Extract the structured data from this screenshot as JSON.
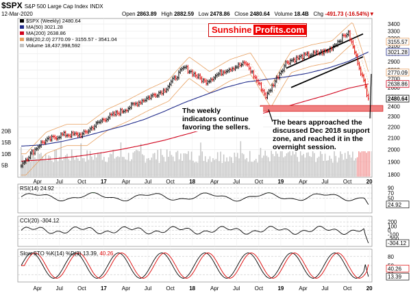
{
  "header": {
    "symbol": "$SPX",
    "name": "S&P 500 Large Cap Index",
    "exchange": "INDX",
    "date": "12-Mar-2020",
    "open_label": "Open",
    "open": "2863.89",
    "high_label": "High",
    "high": "2882.59",
    "low_label": "Low",
    "low": "2478.86",
    "close_label": "Close",
    "close": "2480.64",
    "volume_label": "Volume",
    "volume": "18.4B",
    "chg_label": "Chg",
    "chg": "-491.73 (-16.54%)"
  },
  "legend": [
    {
      "text": "$SPX (Weekly) 2480.64",
      "color": "#000000",
      "marker": "bar"
    },
    {
      "text": "MA(50) 3021.28",
      "color": "#1f2a8a",
      "marker": "line"
    },
    {
      "text": "MA(200) 2638.86",
      "color": "#d0021b",
      "marker": "line"
    },
    {
      "text": "BB(20,2.0) 2770.09 - 3155.57 - 3541.04",
      "color": "#e8a060",
      "marker": "line"
    },
    {
      "text": "Volume 18,437,998,592",
      "color": "#c0c0c0",
      "marker": "bar"
    }
  ],
  "brand": {
    "part1": "Sunshine",
    "part2": "Profits.com"
  },
  "annotations": {
    "weekly": [
      "The weekly",
      "indicators continue",
      "favoring the sellers."
    ],
    "bears": [
      "The bears approached the",
      "discussed Dec 2018 support",
      "zone, and reached it in the",
      "overnight session."
    ]
  },
  "colors": {
    "up": "#000000",
    "down": "#e00000",
    "ma50": "#1f2a8a",
    "ma200": "#d0021b",
    "bb": "#e8a060",
    "support": "#f08080",
    "volume": "#c8c8c8",
    "volume_recent": "#f4a0a0",
    "osc_fill": "#3c7a3c"
  },
  "chart_data": [
    {
      "type": "line",
      "title": "$SPX (Weekly)",
      "ylim": [
        1800,
        3450
      ],
      "log_scale": true,
      "grid": true,
      "price_axis": [
        {
          "label": "3400",
          "v": 3400
        },
        {
          "label": "3300",
          "v": 3300
        },
        {
          "label": "3200",
          "v": 3200
        },
        {
          "label": "3100",
          "v": 3100
        },
        {
          "label": "3000",
          "v": 3000
        },
        {
          "label": "2900",
          "v": 2900
        },
        {
          "label": "2800",
          "v": 2800
        },
        {
          "label": "2700",
          "v": 2700
        },
        {
          "label": "2600",
          "v": 2600
        },
        {
          "label": "2500",
          "v": 2500
        },
        {
          "label": "2400",
          "v": 2400
        },
        {
          "label": "2300",
          "v": 2300
        },
        {
          "label": "2200",
          "v": 2200
        },
        {
          "label": "2100",
          "v": 2100
        },
        {
          "label": "2000",
          "v": 2000
        },
        {
          "label": "1900",
          "v": 1900
        },
        {
          "label": "1800",
          "v": 1800
        }
      ],
      "value_tags": [
        {
          "label": "3155.57",
          "v": 3155.57
        },
        {
          "label": "3021.28",
          "v": 3021.28
        },
        {
          "label": "2770.09",
          "v": 2770.09
        },
        {
          "label": "2638.86",
          "v": 2638.86
        },
        {
          "label": "2480.64",
          "v": 2480.64
        }
      ],
      "volume_axis": [
        {
          "label": "20B",
          "v": 20
        },
        {
          "label": "15B",
          "v": 15
        },
        {
          "label": "10B",
          "v": 10
        },
        {
          "label": "5B",
          "v": 5
        }
      ],
      "time_axis": [
        {
          "label": "Apr",
          "t": 0.06
        },
        {
          "label": "Jul",
          "t": 0.127
        },
        {
          "label": "Oct",
          "t": 0.195
        },
        {
          "label": "17",
          "t": 0.262
        },
        {
          "label": "Apr",
          "t": 0.33
        },
        {
          "label": "Jul",
          "t": 0.397
        },
        {
          "label": "Oct",
          "t": 0.465
        },
        {
          "label": "18",
          "t": 0.532
        },
        {
          "label": "Apr",
          "t": 0.6
        },
        {
          "label": "Jul",
          "t": 0.667
        },
        {
          "label": "Oct",
          "t": 0.735
        },
        {
          "label": "19",
          "t": 0.802
        },
        {
          "label": "Apr",
          "t": 0.87
        },
        {
          "label": "Jul",
          "t": 0.937
        },
        {
          "label": "Oct",
          "t": 1.005
        },
        {
          "label": "20",
          "t": 1.072
        }
      ],
      "x": [
        "2016-01",
        "2016-04",
        "2016-07",
        "2016-10",
        "2017-01",
        "2017-04",
        "2017-07",
        "2017-10",
        "2018-01",
        "2018-04",
        "2018-07",
        "2018-10",
        "2019-01",
        "2019-04",
        "2019-07",
        "2019-10",
        "2020-01",
        "2020-03"
      ],
      "series": [
        {
          "name": "$SPX (Weekly)",
          "values": [
            1880,
            2060,
            2130,
            2130,
            2270,
            2360,
            2470,
            2570,
            2830,
            2660,
            2800,
            2880,
            2500,
            2900,
            2980,
            3030,
            3280,
            2480
          ]
        },
        {
          "name": "MA(50)",
          "values": [
            2030,
            2040,
            2070,
            2110,
            2160,
            2210,
            2270,
            2350,
            2440,
            2520,
            2600,
            2660,
            2690,
            2720,
            2760,
            2820,
            2900,
            3021
          ]
        },
        {
          "name": "MA(200)",
          "values": [
            1905,
            1915,
            1930,
            1950,
            1975,
            2005,
            2040,
            2080,
            2130,
            2180,
            2230,
            2290,
            2340,
            2400,
            2460,
            2520,
            2590,
            2639
          ]
        }
      ],
      "support_zone": [
        2350,
        2410
      ]
    },
    {
      "type": "line",
      "title": "RSI(14)",
      "value": "24.92",
      "ylim": [
        0,
        100
      ],
      "axis": [
        {
          "label": "90",
          "v": 90
        },
        {
          "label": "70",
          "v": 70
        },
        {
          "label": "50",
          "v": 50
        }
      ]
    },
    {
      "type": "line",
      "title": "CCI(20)",
      "value": "-304.12",
      "ylim": [
        -350,
        300
      ],
      "axis": [
        {
          "label": "200",
          "v": 200
        },
        {
          "label": "100",
          "v": 100
        },
        {
          "label": "0",
          "v": 0
        },
        {
          "label": "-100",
          "v": -100
        },
        {
          "label": "-200",
          "v": -200
        }
      ]
    },
    {
      "type": "line",
      "title": "Slow STO %K(14) %D(3)",
      "k": "13.39",
      "d": "40.26",
      "ylim": [
        0,
        100
      ],
      "axis": [
        {
          "label": "80",
          "v": 80
        },
        {
          "label": "50",
          "v": 50
        },
        {
          "label": "20",
          "v": 20
        }
      ]
    }
  ]
}
